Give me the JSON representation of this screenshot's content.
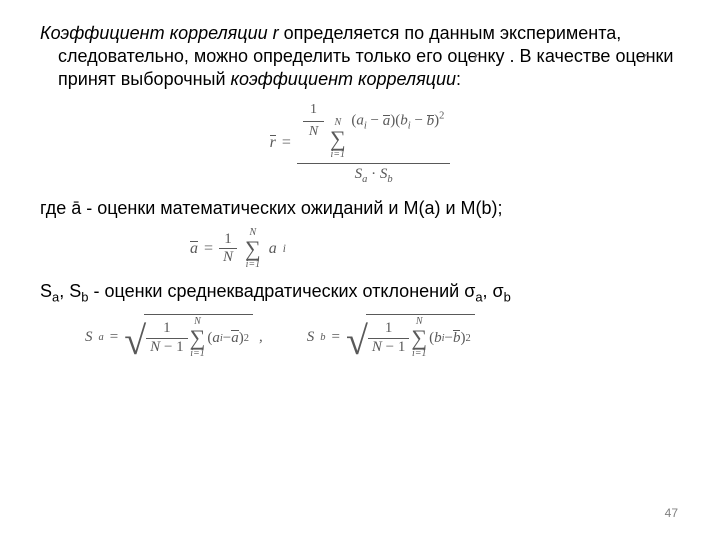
{
  "text": {
    "para1_a": "Коэффициент корреляции r",
    "para1_b": " определяется по данным эксперимента, следовательно, можно определить только его оценку",
    "para1_c": ". В качестве оценки ",
    "para1_d": " принят выборочный ",
    "para1_e": "коэффициент корреляции",
    "para1_f": ":",
    "para2": "где ā - оценки математических ожиданий и M(a) и M(b);",
    "para3_a": "S",
    "para3_b": ", S",
    "para3_c": " - оценки среднеквадратических отклонений σ",
    "para3_d": ", σ",
    "sub_a": "a",
    "sub_b": "b",
    "pagenum": "47"
  },
  "formulas": {
    "r_hat": {
      "lhs": "r̄",
      "num_pref": "1",
      "num_N": "N",
      "sum_from": "i=1",
      "sum_to": "N",
      "term": "(a_i − ā)(b_i − b̄)",
      "sq": "2",
      "den": "S_a · S_b"
    },
    "a_bar": {
      "lhs": "ā",
      "num_pref": "1",
      "num_N": "N",
      "sum_from": "i=1",
      "sum_to": "N",
      "term": "a_i"
    },
    "Sa": {
      "lhs": "S_a",
      "den": "N − 1",
      "sum_from": "i=1",
      "sum_to": "N",
      "term": "(a_i − ā)",
      "sq": "2"
    },
    "Sb": {
      "lhs": "S_b",
      "den": "N − 1",
      "sum_from": "i=1",
      "sum_to": "N",
      "term": "(b_i − b̄)",
      "sq": "2"
    }
  },
  "style": {
    "text_color": "#000000",
    "math_color": "#595959",
    "pagenum_color": "#808080",
    "background": "#ffffff",
    "font_family_body": "Arial",
    "font_family_math": "Georgia",
    "body_fontsize_pt": 14,
    "pagenum_fontsize_pt": 9
  }
}
